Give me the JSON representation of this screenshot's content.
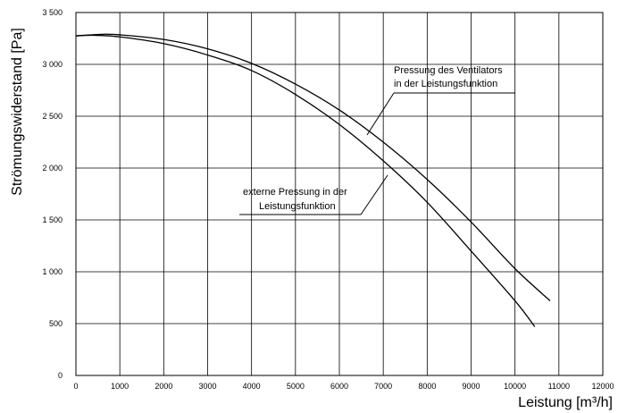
{
  "chart_data": {
    "type": "line",
    "title": "",
    "xlabel": "Leistung [m³/h]",
    "ylabel": "Strömungswiderstand [Pa]",
    "xlim": [
      0,
      12000
    ],
    "ylim": [
      0,
      3500
    ],
    "x_ticks": [
      0,
      1000,
      2000,
      3000,
      4000,
      5000,
      6000,
      7000,
      8000,
      9000,
      10000,
      11000,
      12000
    ],
    "x_tick_labels": [
      "0",
      "1000",
      "2000",
      "3000",
      "4000",
      "5000",
      "6000",
      "7000",
      "8000",
      "9000",
      "10000",
      "11000",
      "12000"
    ],
    "y_ticks": [
      0,
      500,
      1000,
      1500,
      2000,
      2500,
      3000,
      3500
    ],
    "y_tick_labels": [
      "0",
      "500",
      "1 000",
      "1 500",
      "2 000",
      "2 500",
      "3 000",
      "3 500"
    ],
    "grid": true,
    "series": [
      {
        "label_lines": [
          "Pressung des Ventilators",
          "in der Leistungsfunktion"
        ],
        "x": [
          0,
          600,
          1000,
          2000,
          3000,
          4000,
          5000,
          6000,
          7000,
          8000,
          9000,
          10000,
          10800
        ],
        "values": [
          3275,
          3290,
          3285,
          3240,
          3150,
          3010,
          2810,
          2560,
          2250,
          1890,
          1480,
          1030,
          720
        ]
      },
      {
        "label_lines": [
          "externe Pressung in der",
          "Leistungsfunktion"
        ],
        "x": [
          0,
          400,
          1000,
          2000,
          3000,
          4000,
          5000,
          6000,
          7000,
          8000,
          9000,
          10000,
          10450
        ],
        "values": [
          3275,
          3280,
          3265,
          3200,
          3090,
          2940,
          2710,
          2420,
          2070,
          1670,
          1200,
          720,
          470
        ]
      }
    ]
  }
}
